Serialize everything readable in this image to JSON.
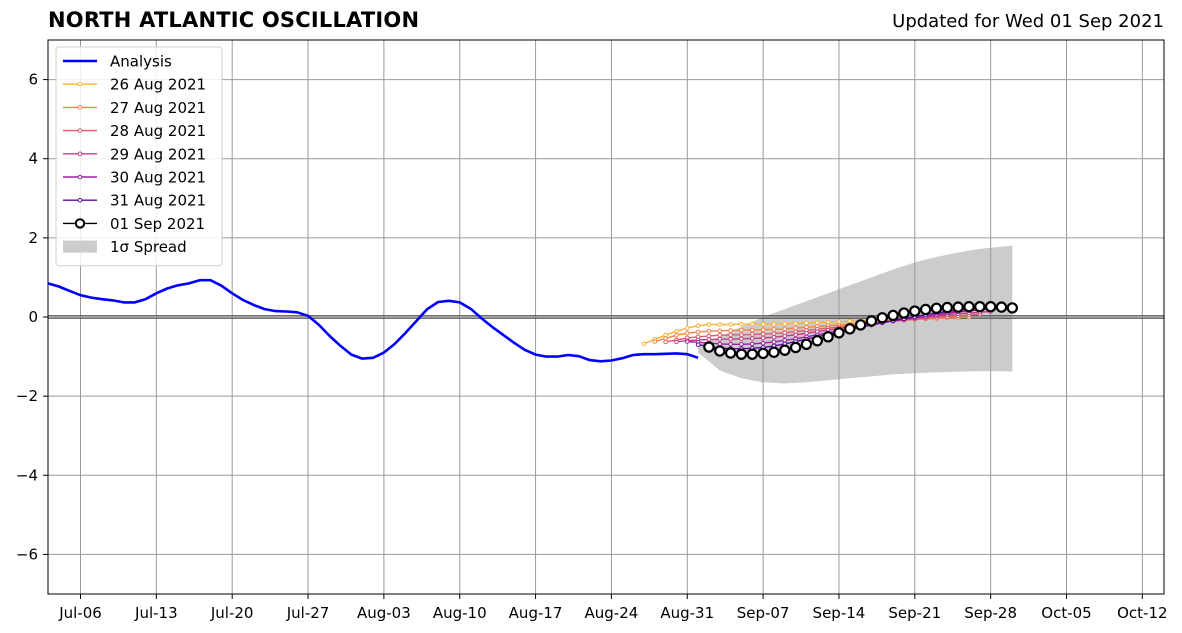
{
  "header": {
    "title": "NORTH ATLANTIC OSCILLATION",
    "subtitle": "Updated for Wed 01 Sep 2021"
  },
  "chart_data": {
    "type": "line",
    "title": "NORTH ATLANTIC OSCILLATION",
    "subtitle": "Updated for Wed 01 Sep 2021",
    "xlabel": "",
    "ylabel": "",
    "x_unit": "date",
    "xlim": [
      "2021-07-03",
      "2021-10-14"
    ],
    "ylim": [
      -7,
      7
    ],
    "yticks": [
      -6,
      -4,
      -2,
      0,
      2,
      4,
      6
    ],
    "ytick_labels": [
      "−6",
      "−4",
      "−2",
      "0",
      "2",
      "4",
      "6"
    ],
    "xticks": [
      "2021-07-06",
      "2021-07-13",
      "2021-07-20",
      "2021-07-27",
      "2021-08-03",
      "2021-08-10",
      "2021-08-17",
      "2021-08-24",
      "2021-08-31",
      "2021-09-07",
      "2021-09-14",
      "2021-09-21",
      "2021-09-28",
      "2021-10-05",
      "2021-10-12"
    ],
    "xtick_labels": [
      "Jul-06",
      "Jul-13",
      "Jul-20",
      "Jul-27",
      "Aug-03",
      "Aug-10",
      "Aug-17",
      "Aug-24",
      "Aug-31",
      "Sep-07",
      "Sep-14",
      "Sep-21",
      "Sep-28",
      "Oct-05",
      "Oct-12"
    ],
    "grid": true,
    "zero_line": true,
    "legend_position": "upper-left",
    "legend": [
      {
        "label": "Analysis",
        "kind": "line",
        "color": "#0000ff"
      },
      {
        "label": "26 Aug 2021",
        "kind": "marker-line",
        "color": "#fbb331"
      },
      {
        "label": "27 Aug 2021",
        "kind": "marker-line",
        "color": "#f4844a"
      },
      {
        "label": "28 Aug 2021",
        "kind": "marker-line",
        "color": "#e05a6b"
      },
      {
        "label": "29 Aug 2021",
        "kind": "marker-line",
        "color": "#c53c86"
      },
      {
        "label": "30 Aug 2021",
        "kind": "marker-line",
        "color": "#9c1fa3"
      },
      {
        "label": "31 Aug 2021",
        "kind": "marker-line",
        "color": "#5a0a9e"
      },
      {
        "label": "01 Sep 2021",
        "kind": "circle-line",
        "color": "#000000"
      },
      {
        "label": "1σ Spread",
        "kind": "patch",
        "color": "#cccccc"
      }
    ],
    "analysis": {
      "name": "Analysis",
      "color": "#0000ff",
      "x": [
        "2021-07-03",
        "2021-07-04",
        "2021-07-05",
        "2021-07-06",
        "2021-07-07",
        "2021-07-08",
        "2021-07-09",
        "2021-07-10",
        "2021-07-11",
        "2021-07-12",
        "2021-07-13",
        "2021-07-14",
        "2021-07-15",
        "2021-07-16",
        "2021-07-17",
        "2021-07-18",
        "2021-07-19",
        "2021-07-20",
        "2021-07-21",
        "2021-07-22",
        "2021-07-23",
        "2021-07-24",
        "2021-07-25",
        "2021-07-26",
        "2021-07-27",
        "2021-07-28",
        "2021-07-29",
        "2021-07-30",
        "2021-07-31",
        "2021-08-01",
        "2021-08-02",
        "2021-08-03",
        "2021-08-04",
        "2021-08-05",
        "2021-08-06",
        "2021-08-07",
        "2021-08-08",
        "2021-08-09",
        "2021-08-10",
        "2021-08-11",
        "2021-08-12",
        "2021-08-13",
        "2021-08-14",
        "2021-08-15",
        "2021-08-16",
        "2021-08-17",
        "2021-08-18",
        "2021-08-19",
        "2021-08-20",
        "2021-08-21",
        "2021-08-22",
        "2021-08-23",
        "2021-08-24",
        "2021-08-25",
        "2021-08-26",
        "2021-08-27",
        "2021-08-28",
        "2021-08-29",
        "2021-08-30",
        "2021-08-31",
        "2021-09-01"
      ],
      "y": [
        0.85,
        0.77,
        0.66,
        0.55,
        0.49,
        0.45,
        0.42,
        0.37,
        0.37,
        0.45,
        0.6,
        0.72,
        0.8,
        0.85,
        0.93,
        0.93,
        0.79,
        0.6,
        0.43,
        0.3,
        0.2,
        0.15,
        0.14,
        0.12,
        0.03,
        -0.2,
        -0.48,
        -0.73,
        -0.95,
        -1.05,
        -1.03,
        -0.9,
        -0.68,
        -0.4,
        -0.1,
        0.2,
        0.38,
        0.41,
        0.37,
        0.21,
        -0.03,
        -0.25,
        -0.45,
        -0.65,
        -0.83,
        -0.95,
        -1.0,
        -1.0,
        -0.96,
        -0.99,
        -1.09,
        -1.12,
        -1.1,
        -1.04,
        -0.96,
        -0.94,
        -0.94,
        -0.93,
        -0.92,
        -0.94,
        -1.03
      ]
    },
    "forecasts": [
      {
        "name": "26 Aug 2021",
        "color": "#fbb331",
        "x": [
          "2021-08-27",
          "2021-08-28",
          "2021-08-29",
          "2021-08-30",
          "2021-08-31",
          "2021-09-01",
          "2021-09-02",
          "2021-09-03",
          "2021-09-04",
          "2021-09-05",
          "2021-09-06",
          "2021-09-07",
          "2021-09-08",
          "2021-09-09",
          "2021-09-10",
          "2021-09-11",
          "2021-09-12",
          "2021-09-13",
          "2021-09-14",
          "2021-09-15",
          "2021-09-16",
          "2021-09-17",
          "2021-09-18",
          "2021-09-19",
          "2021-09-20",
          "2021-09-21",
          "2021-09-22",
          "2021-09-23",
          "2021-09-24",
          "2021-09-25"
        ],
        "y": [
          -0.68,
          -0.56,
          -0.46,
          -0.36,
          -0.28,
          -0.22,
          -0.19,
          -0.19,
          -0.19,
          -0.18,
          -0.18,
          -0.18,
          -0.18,
          -0.17,
          -0.16,
          -0.15,
          -0.14,
          -0.13,
          -0.12,
          -0.11,
          -0.1,
          -0.09,
          -0.08,
          -0.07,
          -0.06,
          -0.05,
          -0.04,
          -0.03,
          -0.02,
          -0.01
        ]
      },
      {
        "name": "27 Aug 2021",
        "color": "#f4844a",
        "x": [
          "2021-08-28",
          "2021-08-29",
          "2021-08-30",
          "2021-08-31",
          "2021-09-01",
          "2021-09-02",
          "2021-09-03",
          "2021-09-04",
          "2021-09-05",
          "2021-09-06",
          "2021-09-07",
          "2021-09-08",
          "2021-09-09",
          "2021-09-10",
          "2021-09-11",
          "2021-09-12",
          "2021-09-13",
          "2021-09-14",
          "2021-09-15",
          "2021-09-16",
          "2021-09-17",
          "2021-09-18",
          "2021-09-19",
          "2021-09-20",
          "2021-09-21",
          "2021-09-22",
          "2021-09-23",
          "2021-09-24",
          "2021-09-25",
          "2021-09-26"
        ],
        "y": [
          -0.62,
          -0.54,
          -0.46,
          -0.41,
          -0.38,
          -0.36,
          -0.35,
          -0.34,
          -0.33,
          -0.33,
          -0.32,
          -0.31,
          -0.3,
          -0.28,
          -0.26,
          -0.24,
          -0.22,
          -0.2,
          -0.18,
          -0.16,
          -0.14,
          -0.12,
          -0.1,
          -0.08,
          -0.06,
          -0.05,
          -0.04,
          -0.02,
          -0.01,
          0.0
        ]
      },
      {
        "name": "28 Aug 2021",
        "color": "#e05a6b",
        "x": [
          "2021-08-29",
          "2021-08-30",
          "2021-08-31",
          "2021-09-01",
          "2021-09-02",
          "2021-09-03",
          "2021-09-04",
          "2021-09-05",
          "2021-09-06",
          "2021-09-07",
          "2021-09-08",
          "2021-09-09",
          "2021-09-10",
          "2021-09-11",
          "2021-09-12",
          "2021-09-13",
          "2021-09-14",
          "2021-09-15",
          "2021-09-16",
          "2021-09-17",
          "2021-09-18",
          "2021-09-19",
          "2021-09-20",
          "2021-09-21",
          "2021-09-22",
          "2021-09-23",
          "2021-09-24",
          "2021-09-25",
          "2021-09-26",
          "2021-09-27"
        ],
        "y": [
          -0.63,
          -0.58,
          -0.53,
          -0.5,
          -0.48,
          -0.46,
          -0.45,
          -0.45,
          -0.44,
          -0.43,
          -0.42,
          -0.4,
          -0.37,
          -0.34,
          -0.31,
          -0.28,
          -0.25,
          -0.22,
          -0.19,
          -0.16,
          -0.13,
          -0.1,
          -0.08,
          -0.05,
          -0.03,
          -0.01,
          0.01,
          0.03,
          0.05,
          0.07
        ]
      },
      {
        "name": "29 Aug 2021",
        "color": "#c53c86",
        "x": [
          "2021-08-30",
          "2021-08-31",
          "2021-09-01",
          "2021-09-02",
          "2021-09-03",
          "2021-09-04",
          "2021-09-05",
          "2021-09-06",
          "2021-09-07",
          "2021-09-08",
          "2021-09-09",
          "2021-09-10",
          "2021-09-11",
          "2021-09-12",
          "2021-09-13",
          "2021-09-14",
          "2021-09-15",
          "2021-09-16",
          "2021-09-17",
          "2021-09-18",
          "2021-09-19",
          "2021-09-20",
          "2021-09-21",
          "2021-09-22",
          "2021-09-23",
          "2021-09-24",
          "2021-09-25",
          "2021-09-26",
          "2021-09-27",
          "2021-09-28"
        ],
        "y": [
          -0.63,
          -0.6,
          -0.58,
          -0.57,
          -0.56,
          -0.56,
          -0.55,
          -0.54,
          -0.53,
          -0.51,
          -0.48,
          -0.45,
          -0.41,
          -0.37,
          -0.33,
          -0.29,
          -0.25,
          -0.21,
          -0.17,
          -0.13,
          -0.1,
          -0.06,
          -0.03,
          0.0,
          0.03,
          0.06,
          0.08,
          0.1,
          0.12,
          0.14
        ]
      },
      {
        "name": "30 Aug 2021",
        "color": "#9c1fa3",
        "x": [
          "2021-08-31",
          "2021-09-01",
          "2021-09-02",
          "2021-09-03",
          "2021-09-04",
          "2021-09-05",
          "2021-09-06",
          "2021-09-07",
          "2021-09-08",
          "2021-09-09",
          "2021-09-10",
          "2021-09-11",
          "2021-09-12",
          "2021-09-13",
          "2021-09-14",
          "2021-09-15",
          "2021-09-16",
          "2021-09-17",
          "2021-09-18",
          "2021-09-19",
          "2021-09-20",
          "2021-09-21",
          "2021-09-22",
          "2021-09-23",
          "2021-09-24",
          "2021-09-25",
          "2021-09-26",
          "2021-09-27",
          "2021-09-28",
          "2021-09-29"
        ],
        "y": [
          -0.62,
          -0.64,
          -0.66,
          -0.68,
          -0.69,
          -0.69,
          -0.68,
          -0.66,
          -0.63,
          -0.59,
          -0.55,
          -0.5,
          -0.45,
          -0.4,
          -0.35,
          -0.3,
          -0.25,
          -0.2,
          -0.15,
          -0.1,
          -0.06,
          -0.02,
          0.02,
          0.06,
          0.1,
          0.13,
          0.16,
          0.18,
          0.2,
          0.22
        ]
      },
      {
        "name": "31 Aug 2021",
        "color": "#5a0a9e",
        "x": [
          "2021-09-01",
          "2021-09-02",
          "2021-09-03",
          "2021-09-04",
          "2021-09-05",
          "2021-09-06",
          "2021-09-07",
          "2021-09-08",
          "2021-09-09",
          "2021-09-10",
          "2021-09-11",
          "2021-09-12",
          "2021-09-13",
          "2021-09-14",
          "2021-09-15",
          "2021-09-16",
          "2021-09-17",
          "2021-09-18",
          "2021-09-19",
          "2021-09-20",
          "2021-09-21",
          "2021-09-22",
          "2021-09-23",
          "2021-09-24",
          "2021-09-25",
          "2021-09-26",
          "2021-09-27",
          "2021-09-28",
          "2021-09-29",
          "2021-09-30"
        ],
        "y": [
          -0.7,
          -0.74,
          -0.78,
          -0.8,
          -0.8,
          -0.79,
          -0.77,
          -0.73,
          -0.68,
          -0.62,
          -0.56,
          -0.5,
          -0.44,
          -0.38,
          -0.32,
          -0.26,
          -0.2,
          -0.14,
          -0.09,
          -0.04,
          0.01,
          0.06,
          0.1,
          0.14,
          0.17,
          0.2,
          0.22,
          0.24,
          0.25,
          0.26
        ]
      },
      {
        "name": "01 Sep 2021",
        "color": "#000000",
        "style": "circles",
        "x": [
          "2021-09-02",
          "2021-09-03",
          "2021-09-04",
          "2021-09-05",
          "2021-09-06",
          "2021-09-07",
          "2021-09-08",
          "2021-09-09",
          "2021-09-10",
          "2021-09-11",
          "2021-09-12",
          "2021-09-13",
          "2021-09-14",
          "2021-09-15",
          "2021-09-16",
          "2021-09-17",
          "2021-09-18",
          "2021-09-19",
          "2021-09-20",
          "2021-09-21",
          "2021-09-22",
          "2021-09-23",
          "2021-09-24",
          "2021-09-25",
          "2021-09-26",
          "2021-09-27",
          "2021-09-28",
          "2021-09-29",
          "2021-09-30"
        ],
        "y": [
          -0.76,
          -0.86,
          -0.91,
          -0.94,
          -0.94,
          -0.92,
          -0.89,
          -0.84,
          -0.77,
          -0.69,
          -0.6,
          -0.5,
          -0.4,
          -0.3,
          -0.2,
          -0.1,
          -0.02,
          0.04,
          0.1,
          0.15,
          0.19,
          0.22,
          0.24,
          0.25,
          0.26,
          0.26,
          0.26,
          0.25,
          0.23
        ]
      }
    ],
    "spread": {
      "name": "1σ Spread",
      "color": "#cccccc",
      "x": [
        "2021-09-01",
        "2021-09-03",
        "2021-09-05",
        "2021-09-07",
        "2021-09-09",
        "2021-09-11",
        "2021-09-13",
        "2021-09-15",
        "2021-09-17",
        "2021-09-19",
        "2021-09-21",
        "2021-09-23",
        "2021-09-25",
        "2021-09-27",
        "2021-09-29",
        "2021-09-30"
      ],
      "upper": [
        -0.7,
        -0.5,
        -0.25,
        0.0,
        0.2,
        0.4,
        0.6,
        0.8,
        1.0,
        1.2,
        1.38,
        1.52,
        1.63,
        1.72,
        1.78,
        1.8
      ],
      "lower": [
        -0.9,
        -1.35,
        -1.55,
        -1.65,
        -1.68,
        -1.65,
        -1.6,
        -1.55,
        -1.5,
        -1.45,
        -1.42,
        -1.4,
        -1.38,
        -1.37,
        -1.37,
        -1.38
      ]
    }
  }
}
